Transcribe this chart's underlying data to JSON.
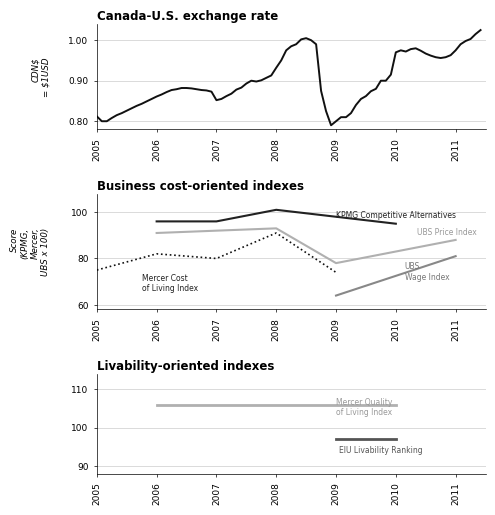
{
  "title1": "Canada-U.S. exchange rate",
  "title2": "Business cost-oriented indexes",
  "title3": "Livability-oriented indexes",
  "ylabel1": "CDN$\n= $1USD",
  "ylabel2": "Score\n(KPMG,\nMercer,\nUBS x 100)",
  "exchange_rate": {
    "x": [
      2005.0,
      2005.083,
      2005.167,
      2005.25,
      2005.333,
      2005.417,
      2005.5,
      2005.583,
      2005.667,
      2005.75,
      2005.833,
      2005.917,
      2006.0,
      2006.083,
      2006.167,
      2006.25,
      2006.333,
      2006.417,
      2006.5,
      2006.583,
      2006.667,
      2006.75,
      2006.833,
      2006.917,
      2007.0,
      2007.083,
      2007.167,
      2007.25,
      2007.333,
      2007.417,
      2007.5,
      2007.583,
      2007.667,
      2007.75,
      2007.833,
      2007.917,
      2008.0,
      2008.083,
      2008.167,
      2008.25,
      2008.333,
      2008.417,
      2008.5,
      2008.583,
      2008.667,
      2008.75,
      2008.833,
      2008.917,
      2009.0,
      2009.083,
      2009.167,
      2009.25,
      2009.333,
      2009.417,
      2009.5,
      2009.583,
      2009.667,
      2009.75,
      2009.833,
      2009.917,
      2010.0,
      2010.083,
      2010.167,
      2010.25,
      2010.333,
      2010.417,
      2010.5,
      2010.583,
      2010.667,
      2010.75,
      2010.833,
      2010.917,
      2011.0,
      2011.083,
      2011.167,
      2011.25,
      2011.333,
      2011.417
    ],
    "y": [
      0.812,
      0.8,
      0.8,
      0.808,
      0.815,
      0.82,
      0.826,
      0.832,
      0.838,
      0.843,
      0.849,
      0.855,
      0.861,
      0.866,
      0.872,
      0.877,
      0.879,
      0.882,
      0.882,
      0.881,
      0.879,
      0.877,
      0.876,
      0.873,
      0.852,
      0.855,
      0.862,
      0.868,
      0.878,
      0.883,
      0.893,
      0.9,
      0.898,
      0.901,
      0.907,
      0.913,
      0.932,
      0.95,
      0.975,
      0.985,
      0.99,
      1.002,
      1.005,
      1.0,
      0.99,
      0.875,
      0.825,
      0.79,
      0.8,
      0.81,
      0.81,
      0.82,
      0.84,
      0.855,
      0.862,
      0.874,
      0.88,
      0.9,
      0.9,
      0.915,
      0.97,
      0.975,
      0.972,
      0.978,
      0.98,
      0.974,
      0.967,
      0.962,
      0.958,
      0.956,
      0.958,
      0.963,
      0.975,
      0.99,
      0.998,
      1.003,
      1.015,
      1.025
    ]
  },
  "kpmg": {
    "x": [
      2006,
      2007,
      2008,
      2010
    ],
    "y": [
      96,
      96,
      101,
      95
    ]
  },
  "ubs_price": {
    "x": [
      2006,
      2008,
      2009,
      2011
    ],
    "y": [
      91,
      93,
      78,
      88
    ]
  },
  "ubs_wage": {
    "x": [
      2009,
      2011
    ],
    "y": [
      64,
      81
    ]
  },
  "mercer_cost": {
    "x": [
      2005,
      2006,
      2007,
      2008,
      2009
    ],
    "y": [
      75,
      82,
      80,
      91,
      74
    ]
  },
  "mercer_quality": {
    "x": [
      2006,
      2010
    ],
    "y": [
      106,
      106
    ]
  },
  "eiu": {
    "x": [
      2009,
      2010
    ],
    "y": [
      97,
      97
    ]
  },
  "xlim": [
    2005,
    2011.5
  ],
  "xticks": [
    2005,
    2006,
    2007,
    2008,
    2009,
    2010,
    2011
  ],
  "ylim1": [
    0.78,
    1.04
  ],
  "yticks1": [
    0.8,
    0.9,
    1.0
  ],
  "ylim2": [
    58,
    108
  ],
  "yticks2": [
    60,
    80,
    100
  ],
  "ylim3": [
    88,
    114
  ],
  "yticks3": [
    90,
    100,
    110
  ],
  "background_color": "#ffffff",
  "line_color_exchange": "#111111",
  "line_color_kpmg": "#222222",
  "line_color_ubs_price": "#b0b0b0",
  "line_color_ubs_wage": "#888888",
  "line_color_mercer_cost": "#111111",
  "line_color_mercer_quality": "#b0b0b0",
  "line_color_eiu": "#555555"
}
